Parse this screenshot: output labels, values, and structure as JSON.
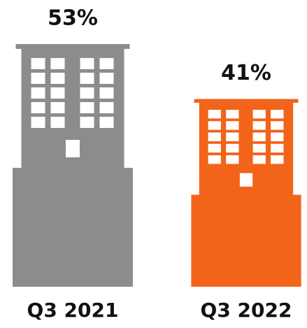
{
  "chart_data": {
    "type": "pictograph",
    "categories": [
      "Q3 2021",
      "Q3 2022"
    ],
    "values": [
      53,
      41
    ],
    "value_labels": [
      "53%",
      "41%"
    ],
    "colors": [
      "#8c8c8c",
      "#f26419"
    ]
  }
}
